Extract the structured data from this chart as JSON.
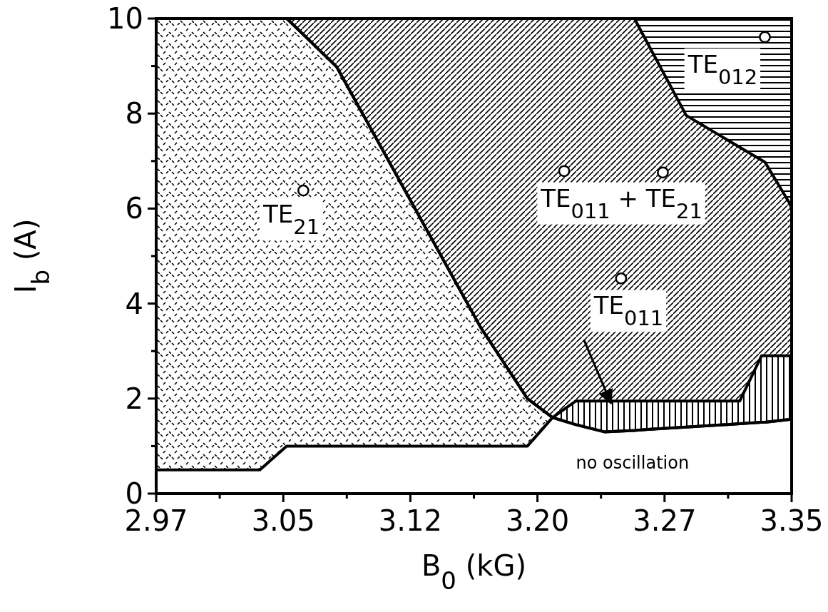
{
  "chart_data": {
    "type": "area",
    "stacked": true,
    "xlabel": "B$_{0}$ (kG)",
    "ylabel": "I$_{b}$ (A)",
    "x": [
      2.97,
      3.032,
      3.048,
      3.049,
      3.078,
      3.164,
      3.192,
      3.207,
      3.221,
      3.238,
      3.256,
      3.264,
      3.287,
      3.319,
      3.332,
      3.334,
      3.349,
      3.35
    ],
    "series": [
      {
        "color": "#ffffff",
        "values": [
          0.5,
          0.5,
          1,
          1,
          1,
          1,
          1,
          1.6,
          1.45,
          1.3,
          1.33,
          1.35,
          1.4,
          1.47,
          1.5,
          1.5,
          1.56,
          1.56
        ]
      },
      {
        "color": "#000000",
        "values": [
          9.5,
          9.5,
          9,
          8.97,
          7.98,
          2.5,
          1,
          0,
          0,
          0,
          0,
          0,
          0,
          0,
          0,
          0,
          0,
          0
        ]
      },
      {
        "color": "#000000",
        "values": [
          0,
          0,
          0,
          0,
          0,
          0,
          0,
          0,
          0.5,
          0.65,
          0.62,
          0.6,
          0.55,
          0.48,
          1.4,
          1.4,
          1.34,
          1.34
        ]
      },
      {
        "color": "#000000",
        "values": [
          0,
          0,
          0,
          0.03,
          1.02,
          6.5,
          8,
          8.4,
          8.05,
          8.05,
          8.05,
          7.52,
          6.01,
          5.34,
          4.12,
          4.08,
          3.2,
          3.1
        ]
      },
      {
        "color": "#000000",
        "values": [
          0,
          0,
          0,
          0,
          0,
          0,
          0,
          0,
          0,
          0,
          0,
          0.53,
          2.04,
          2.71,
          2.98,
          3.02,
          3.9,
          4
        ]
      },
      {
        "type": "scatter",
        "marker": "circle",
        "color": "#000000",
        "x": [
          3.058,
          3.214,
          3.273,
          3.248,
          3.334
        ],
        "values": [
          6.38,
          6.79,
          6.76,
          4.53,
          9.61
        ]
      }
    ],
    "annotations": [
      "TE$_{21}$",
      "TE$_{011}$ + TE$_{21}$",
      {
        "text": "TE$_{011}$",
        "x": 3.242,
        "y": 1.9
      },
      "TE$_{012}$",
      "no oscillation"
    ],
    "xlim": [
      2.97,
      3.35
    ],
    "xticks": [
      2.97,
      {
        "value": 3.008,
        "label": null
      },
      {
        "value": 3.046,
        "label": "3.05"
      },
      {
        "value": 3.084,
        "label": null
      },
      {
        "value": 3.122,
        "label": "3.12"
      },
      {
        "value": 3.16,
        "label": null
      },
      {
        "value": 3.198,
        "label": "3.20"
      },
      {
        "value": 3.236,
        "label": null
      },
      {
        "value": 3.274,
        "label": "3.27"
      },
      {
        "value": 3.312,
        "label": null
      },
      3.35
    ],
    "ylim": [
      0,
      10
    ],
    "yticks": [
      0,
      {
        "value": 1,
        "label": null
      },
      2,
      {
        "value": 3,
        "label": null
      },
      4,
      {
        "value": 5,
        "label": null
      },
      6,
      {
        "value": 7,
        "label": null
      },
      8,
      {
        "value": 9,
        "label": null
      },
      10
    ]
  }
}
